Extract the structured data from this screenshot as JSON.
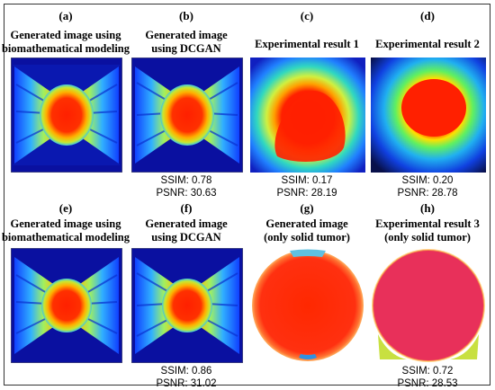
{
  "panels": [
    {
      "letter": "(a)",
      "caption": [
        "Generated image using",
        "biomathematical modeling"
      ],
      "metrics": []
    },
    {
      "letter": "(b)",
      "caption": [
        "Generated image",
        "using DCGAN"
      ],
      "metrics": [
        "SSIM: 0.78",
        "PSNR: 30.63"
      ]
    },
    {
      "letter": "(c)",
      "caption": [
        "Experimental result 1"
      ],
      "metrics": [
        "SSIM: 0.17",
        "PSNR: 28.19"
      ]
    },
    {
      "letter": "(d)",
      "caption": [
        "Experimental result 2"
      ],
      "metrics": [
        "SSIM: 0.20",
        "PSNR: 28.78"
      ]
    },
    {
      "letter": "(e)",
      "caption": [
        "Generated image using",
        "biomathematical modeling"
      ],
      "metrics": []
    },
    {
      "letter": "(f)",
      "caption": [
        "Generated image",
        "using DCGAN"
      ],
      "metrics": [
        "SSIM: 0.86",
        "PSNR: 31.02"
      ]
    },
    {
      "letter": "(g)",
      "caption": [
        "Generated image",
        "(only solid tumor)"
      ],
      "metrics": []
    },
    {
      "letter": "(h)",
      "caption": [
        "Experimental result 3",
        "(only solid tumor)"
      ],
      "metrics": [
        "SSIM: 0.72",
        "PSNR: 28.53"
      ]
    }
  ]
}
